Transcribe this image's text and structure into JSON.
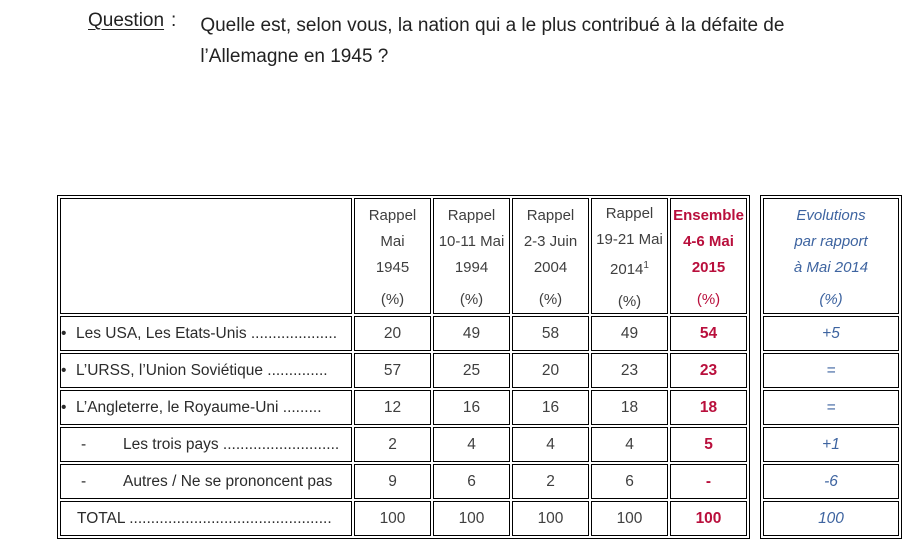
{
  "question": {
    "label": "Question",
    "colon": ":",
    "line1": "Quelle est, selon vous, la nation qui a le plus contribué à la défaite de",
    "line2": "l’Allemagne en 1945 ?"
  },
  "main_table": {
    "columns": [
      {
        "line1": "Rappel",
        "line2": "Mai",
        "line3": "1945",
        "pct": "(%)"
      },
      {
        "line1": "Rappel",
        "line2": "10-11 Mai",
        "line3": "1994",
        "pct": "(%)"
      },
      {
        "line1": "Rappel",
        "line2": "2-3 Juin",
        "line3": "2004",
        "pct": "(%)"
      },
      {
        "line1": "Rappel",
        "line2": "19-21 Mai",
        "line3": "2014",
        "sup": "1",
        "pct": "(%)"
      },
      {
        "line1": "Ensemble",
        "line2": "4-6 Mai",
        "line3": "2015",
        "pct": "(%)"
      }
    ],
    "rows": [
      {
        "bullet": "•",
        "label": "Les USA, Les Etats-Unis ....................",
        "values": [
          "20",
          "49",
          "58",
          "49",
          "54"
        ]
      },
      {
        "bullet": "•",
        "label": "L’URSS, l’Union Soviétique ..............",
        "values": [
          "57",
          "25",
          "20",
          "23",
          "23"
        ]
      },
      {
        "bullet": "•",
        "label": "L’Angleterre, le Royaume-Uni .........",
        "values": [
          "12",
          "16",
          "16",
          "18",
          "18"
        ]
      },
      {
        "bullet": "-",
        "label": "Les trois pays ...........................",
        "values": [
          "2",
          "4",
          "4",
          "4",
          "5"
        ]
      },
      {
        "bullet": "-",
        "label": "Autres / Ne se prononcent pas",
        "values": [
          "9",
          "6",
          "2",
          "6",
          "-"
        ]
      },
      {
        "bullet": "",
        "label": "TOTAL ...............................................",
        "values": [
          "100",
          "100",
          "100",
          "100",
          "100"
        ]
      }
    ]
  },
  "evolution_table": {
    "header": {
      "line1": "Evolutions",
      "line2": "par rapport",
      "line3": "à Mai 2014",
      "pct": "(%)"
    },
    "values": [
      "+5",
      "=",
      "=",
      "+1",
      "-6",
      "100"
    ]
  },
  "colors": {
    "highlight_red": "#B90F3C",
    "evolution_blue": "#3E64A0"
  }
}
